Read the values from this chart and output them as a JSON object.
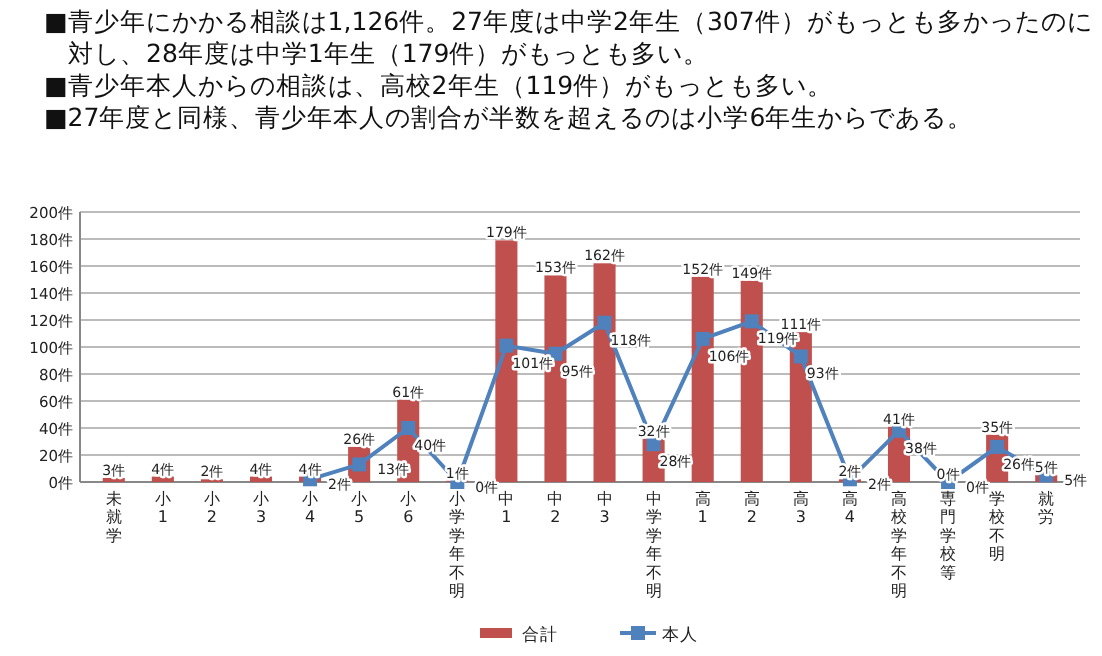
{
  "chart_data": {
    "type": "bar",
    "annotations": [
      "■青少年にかかる相談は1,126件。27年度は中学2年生（307件）がもっとも多かったのに対し、28年度は中学1年生（179件）がもっとも多い。",
      "■青少年本人からの相談は、高校2年生（119件）がもっとも多い。",
      "■27年度と同様、青少年本人の割合が半数を超えるのは小学6年生からである。"
    ],
    "categories": [
      "未就学",
      "小1",
      "小2",
      "小3",
      "小4",
      "小5",
      "小6",
      "小学学年不明",
      "中1",
      "中2",
      "中3",
      "中学学年不明",
      "高1",
      "高2",
      "高3",
      "高4",
      "高校学年不明",
      "専門学校等",
      "学校不明",
      "就労"
    ],
    "series": [
      {
        "name": "合計",
        "color": "#c0504d",
        "values": [
          3,
          4,
          2,
          4,
          4,
          26,
          61,
          1,
          179,
          153,
          162,
          32,
          152,
          149,
          111,
          2,
          41,
          0,
          35,
          5
        ],
        "value_labels": [
          "3件",
          "4件",
          "2件",
          "4件",
          "4件",
          "26件",
          "61件",
          "1件",
          "179件",
          "153件",
          "162件",
          "32件",
          "152件",
          "149件",
          "111件",
          "2件",
          "41件",
          "0件",
          "35件",
          "5件"
        ]
      },
      {
        "name": "本人",
        "type": "line",
        "color": "#4f81bd",
        "marker": "square",
        "values": [
          null,
          null,
          null,
          null,
          2,
          13,
          40,
          0,
          101,
          95,
          118,
          28,
          106,
          119,
          93,
          2,
          38,
          0,
          26,
          5
        ],
        "value_labels": [
          null,
          null,
          null,
          null,
          "2件",
          "13件",
          "40件",
          "0件",
          "101件",
          "95件",
          "118件",
          "28件",
          "106件",
          "119件",
          "93件",
          "2件",
          "38件",
          "0件",
          "26件",
          "5件"
        ]
      }
    ],
    "ylim": [
      0,
      200
    ],
    "yticks": [
      {
        "value": 0,
        "label": "0件"
      },
      {
        "value": 20,
        "label": "20件"
      },
      {
        "value": 40,
        "label": "40件"
      },
      {
        "value": 60,
        "label": "60件"
      },
      {
        "value": 80,
        "label": "80件"
      },
      {
        "value": 100,
        "label": "100件"
      },
      {
        "value": 120,
        "label": "120件"
      },
      {
        "value": 140,
        "label": "140件"
      },
      {
        "value": 160,
        "label": "160件"
      },
      {
        "value": 180,
        "label": "180件"
      },
      {
        "value": 200,
        "label": "200件"
      }
    ],
    "grid": "y",
    "legend": "bottom"
  }
}
